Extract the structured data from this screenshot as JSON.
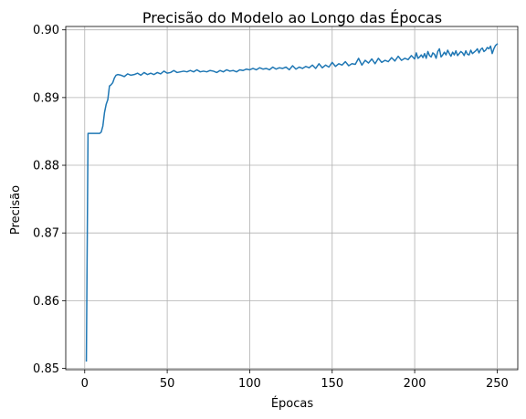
{
  "chart_data": {
    "type": "line",
    "title": "Precisão do Modelo ao Longo das Épocas",
    "xlabel": "Épocas",
    "ylabel": "Precisão",
    "xlim": [
      -11.5,
      262.5
    ],
    "ylim": [
      0.8498,
      0.9005
    ],
    "xticks": [
      0,
      50,
      100,
      150,
      200,
      250
    ],
    "yticks": [
      0.85,
      0.86,
      0.87,
      0.88,
      0.89,
      0.9
    ],
    "ytick_labels": [
      "0.85",
      "0.86",
      "0.87",
      "0.88",
      "0.89",
      "0.90"
    ],
    "grid": true,
    "series": [
      {
        "color": "#1f77b4",
        "x": [
          1,
          2,
          3,
          4,
          5,
          6,
          7,
          8,
          9,
          10,
          11,
          12,
          13,
          14,
          15,
          16,
          17,
          18,
          19,
          20,
          22,
          24,
          26,
          28,
          30,
          32,
          34,
          36,
          38,
          40,
          42,
          44,
          46,
          48,
          50,
          52,
          54,
          56,
          58,
          60,
          62,
          64,
          66,
          68,
          70,
          72,
          74,
          76,
          78,
          80,
          82,
          84,
          86,
          88,
          90,
          92,
          94,
          96,
          98,
          100,
          102,
          104,
          106,
          108,
          110,
          112,
          114,
          116,
          118,
          120,
          122,
          124,
          126,
          128,
          130,
          132,
          134,
          136,
          138,
          140,
          142,
          144,
          146,
          148,
          150,
          152,
          154,
          156,
          158,
          160,
          162,
          164,
          166,
          168,
          170,
          172,
          174,
          176,
          178,
          180,
          182,
          184,
          186,
          188,
          190,
          192,
          194,
          196,
          198,
          200,
          201,
          202,
          203,
          204,
          205,
          206,
          207,
          208,
          209,
          210,
          211,
          212,
          213,
          214,
          215,
          216,
          217,
          218,
          219,
          220,
          221,
          222,
          223,
          224,
          225,
          226,
          227,
          228,
          229,
          230,
          231,
          232,
          233,
          234,
          235,
          236,
          237,
          238,
          239,
          240,
          241,
          242,
          243,
          244,
          245,
          246,
          247,
          248,
          249,
          250
        ],
        "y": [
          0.8511,
          0.8847,
          0.8847,
          0.8847,
          0.8847,
          0.8847,
          0.8847,
          0.8847,
          0.8847,
          0.8849,
          0.8858,
          0.8878,
          0.889,
          0.8897,
          0.8917,
          0.8919,
          0.8922,
          0.8929,
          0.8933,
          0.8934,
          0.8933,
          0.8931,
          0.8935,
          0.8933,
          0.8934,
          0.8936,
          0.8933,
          0.8937,
          0.8934,
          0.8936,
          0.8934,
          0.8937,
          0.8935,
          0.8939,
          0.8936,
          0.8937,
          0.894,
          0.8937,
          0.8938,
          0.8939,
          0.8938,
          0.894,
          0.8938,
          0.8941,
          0.8938,
          0.8939,
          0.8938,
          0.894,
          0.8939,
          0.8937,
          0.894,
          0.8938,
          0.8941,
          0.8939,
          0.894,
          0.8938,
          0.8941,
          0.894,
          0.8942,
          0.8941,
          0.8943,
          0.8941,
          0.8944,
          0.8942,
          0.8943,
          0.8941,
          0.8945,
          0.8942,
          0.8944,
          0.8943,
          0.8945,
          0.8941,
          0.8947,
          0.8942,
          0.8945,
          0.8943,
          0.8946,
          0.8944,
          0.8948,
          0.8943,
          0.895,
          0.8944,
          0.8948,
          0.8945,
          0.8952,
          0.8946,
          0.895,
          0.8948,
          0.8953,
          0.8947,
          0.895,
          0.8949,
          0.8958,
          0.8948,
          0.8955,
          0.8951,
          0.8957,
          0.895,
          0.8958,
          0.8952,
          0.8955,
          0.8953,
          0.8959,
          0.8954,
          0.8961,
          0.8955,
          0.8958,
          0.8956,
          0.8962,
          0.8957,
          0.8966,
          0.8958,
          0.896,
          0.8963,
          0.8959,
          0.8965,
          0.8958,
          0.8968,
          0.8962,
          0.896,
          0.8966,
          0.8964,
          0.8958,
          0.8968,
          0.8972,
          0.896,
          0.8963,
          0.8967,
          0.8963,
          0.897,
          0.8965,
          0.8961,
          0.8967,
          0.8963,
          0.8969,
          0.8962,
          0.8965,
          0.8968,
          0.8966,
          0.8962,
          0.8969,
          0.8964,
          0.8963,
          0.897,
          0.8965,
          0.8967,
          0.8969,
          0.8972,
          0.8966,
          0.8971,
          0.8973,
          0.8968,
          0.897,
          0.8974,
          0.8972,
          0.8976,
          0.8965,
          0.8972,
          0.8977,
          0.8979
        ]
      }
    ]
  }
}
